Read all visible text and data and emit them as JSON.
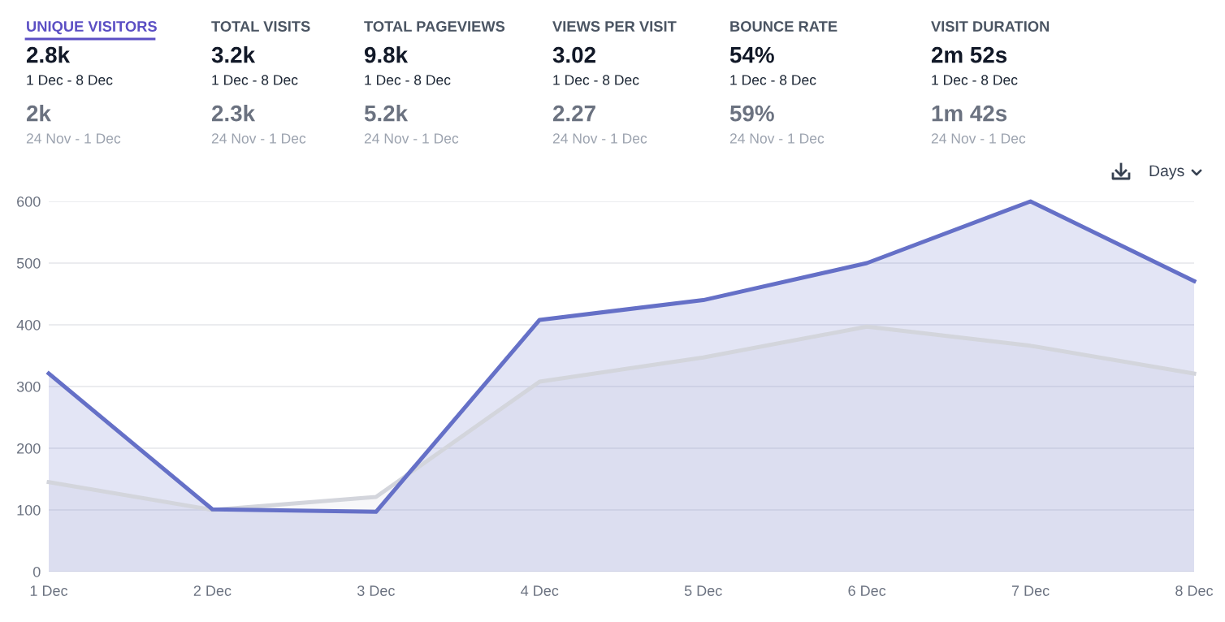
{
  "chart_data": [
    {
      "type": "other",
      "title": "UNIQUE VISITORS",
      "annotations": [
        "2.8k",
        "1 Dec - 8 Dec",
        "2k",
        "24 Nov - 1 Dec"
      ]
    },
    {
      "type": "other",
      "title": "TOTAL VISITS",
      "annotations": [
        "3.2k",
        "1 Dec - 8 Dec",
        "2.3k",
        "24 Nov - 1 Dec"
      ]
    },
    {
      "type": "other",
      "title": "TOTAL PAGEVIEWS",
      "annotations": [
        "9.8k",
        "1 Dec - 8 Dec",
        "5.2k",
        "24 Nov - 1 Dec"
      ]
    },
    {
      "type": "other",
      "title": "VIEWS PER VISIT",
      "annotations": [
        "3.02",
        "1 Dec - 8 Dec",
        "2.27",
        "24 Nov - 1 Dec"
      ]
    },
    {
      "type": "other",
      "title": "BOUNCE RATE",
      "annotations": [
        "54%",
        "1 Dec - 8 Dec",
        "59%",
        "24 Nov - 1 Dec"
      ]
    },
    {
      "type": "other",
      "title": "VISIT DURATION",
      "annotations": [
        "2m 52s",
        "1 Dec - 8 Dec",
        "1m 42s",
        "24 Nov - 1 Dec"
      ]
    },
    {
      "type": "area",
      "categories": [
        "1 Dec",
        "2 Dec",
        "3 Dec",
        "4 Dec",
        "5 Dec",
        "6 Dec",
        "7 Dec",
        "8 Dec"
      ],
      "series": [
        {
          "color": "#d3d5dc",
          "values": [
            145,
            100,
            121,
            308,
            347,
            397,
            366,
            321
          ]
        },
        {
          "color": "#6570c7",
          "values": [
            321,
            101,
            97,
            408,
            440,
            500,
            600,
            471
          ]
        }
      ],
      "ylim": [
        0,
        600
      ],
      "yticks": [
        0,
        100,
        200,
        300,
        400,
        500,
        600
      ],
      "grid": "y",
      "marker": "none",
      "line_style": "solid",
      "annotations": [
        "Days"
      ]
    }
  ]
}
